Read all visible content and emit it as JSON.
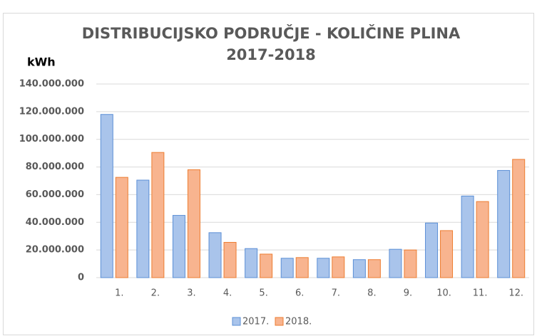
{
  "chart_data": {
    "type": "bar",
    "title": [
      "DISTRIBUCIJSKO  PODRUČJE  - KOLIČINE PLINA",
      "2017-2018"
    ],
    "y_label": "kWh",
    "categories": [
      "1.",
      "2.",
      "3.",
      "4.",
      "5.",
      "6.",
      "7.",
      "8.",
      "9.",
      "10.",
      "11.",
      "12."
    ],
    "series": [
      {
        "name": "2017.",
        "color": "#a9c4eb",
        "edge": "#5b8fd6",
        "values": [
          118000000,
          70500000,
          45000000,
          32500000,
          21000000,
          14000000,
          14000000,
          13000000,
          20500000,
          39500000,
          59000000,
          77500000
        ]
      },
      {
        "name": "2018.",
        "color": "#f8b48f",
        "edge": "#ed7d31",
        "values": [
          72500000,
          90500000,
          78000000,
          25500000,
          17000000,
          14500000,
          15000000,
          13000000,
          20000000,
          34000000,
          55000000,
          85500000
        ]
      }
    ],
    "ylim": [
      0,
      140000000
    ],
    "yticks": [
      0,
      {
        "value": 20000000,
        "label": "20.000.000"
      },
      {
        "value": 40000000,
        "label": "40.000.000"
      },
      {
        "value": 60000000,
        "label": "60.000.000"
      },
      {
        "value": 80000000,
        "label": "80.000.000"
      },
      {
        "value": 100000000,
        "label": "100.000.000"
      },
      {
        "value": 120000000,
        "label": "120.000.000"
      },
      {
        "value": 140000000,
        "label": "140.000.000"
      }
    ],
    "grid": true,
    "legend": "bottom"
  }
}
